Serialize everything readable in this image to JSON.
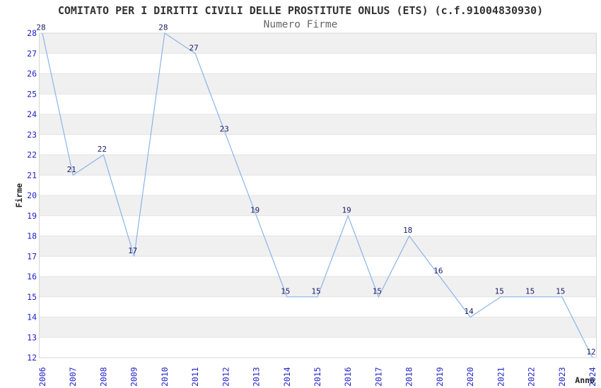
{
  "header": {
    "title": "COMITATO PER I DIRITTI CIVILI DELLE PROSTITUTE ONLUS (ETS) (c.f.91004830930)",
    "subtitle": "Numero Firme"
  },
  "chart_data": {
    "type": "line",
    "title": "COMITATO PER I DIRITTI CIVILI DELLE PROSTITUTE ONLUS (ETS) (c.f.91004830930)",
    "subtitle": "Numero Firme",
    "xlabel": "Anno",
    "ylabel": "Firme",
    "x": [
      2006,
      2007,
      2008,
      2009,
      2010,
      2011,
      2012,
      2013,
      2014,
      2015,
      2016,
      2017,
      2018,
      2019,
      2020,
      2021,
      2022,
      2023,
      2024
    ],
    "values": [
      28,
      21,
      22,
      17,
      28,
      27,
      23,
      19,
      15,
      15,
      19,
      15,
      18,
      16,
      14,
      15,
      15,
      15,
      12
    ],
    "ylim": [
      12,
      28
    ],
    "ytick_step": 1,
    "grid": "horizontal-stripes-alternating",
    "legend_position": "none",
    "point_labels_visible": true
  },
  "colors": {
    "line": "#8ab4e8",
    "tick_labels": "#2222cc",
    "point_labels": "#1a1a66",
    "axis_name_labels": "#222222",
    "stripe_gray": "#f0f0f0",
    "gridline": "#e3e3e3",
    "plot_border": "#d6d6d6",
    "title": "#333333",
    "subtitle": "#666666",
    "background": "#ffffff"
  }
}
